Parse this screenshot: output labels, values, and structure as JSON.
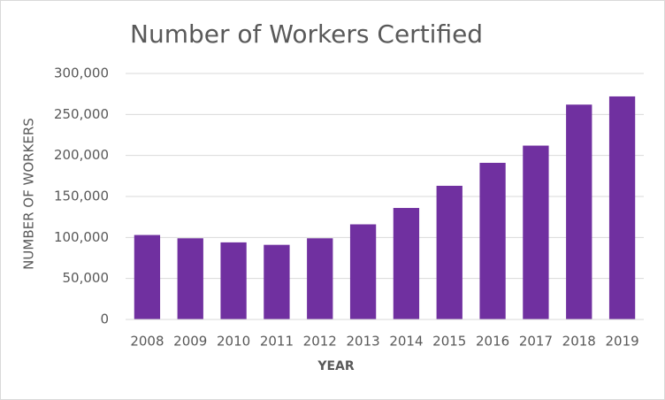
{
  "chart_data": {
    "type": "bar",
    "title": "Number of Workers Certified",
    "x_label": "YEAR",
    "y_label": "NUMBER OF WORKERS",
    "categories": [
      "2008",
      "2009",
      "2010",
      "2011",
      "2012",
      "2013",
      "2014",
      "2015",
      "2016",
      "2017",
      "2018",
      "2019"
    ],
    "values": [
      103000,
      99000,
      94000,
      91000,
      99000,
      116000,
      136000,
      163000,
      191000,
      212000,
      262000,
      272000
    ],
    "color": "#7030a0",
    "ylim": [
      0,
      300000
    ],
    "yticks": [
      0,
      {
        "value": 50000,
        "label": "50,000"
      },
      {
        "value": 100000,
        "label": "100,000"
      },
      {
        "value": 150000,
        "label": "150,000"
      },
      {
        "value": 200000,
        "label": "200,000"
      },
      {
        "value": 250000,
        "label": "250,000"
      },
      {
        "value": 300000,
        "label": "300,000"
      }
    ],
    "grid": true
  }
}
